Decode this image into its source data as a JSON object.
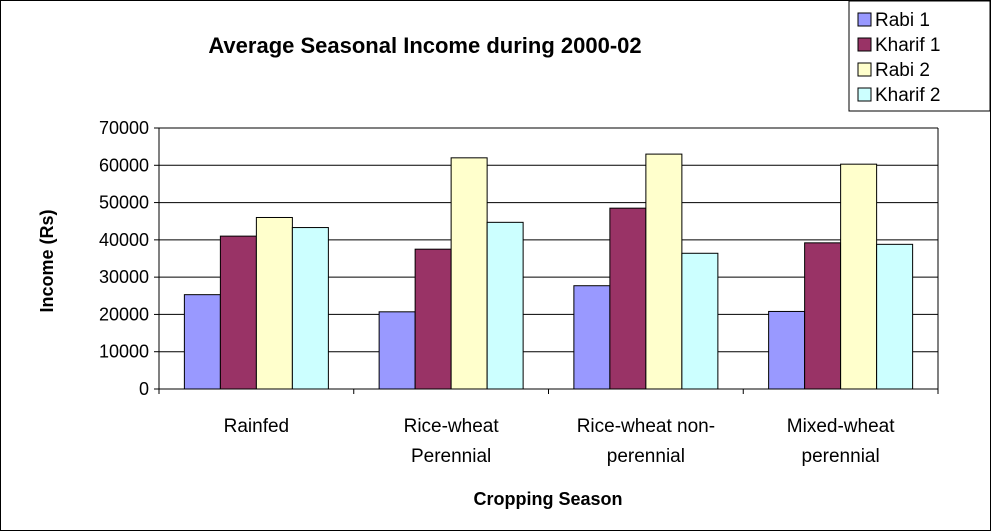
{
  "chart_data": {
    "type": "bar",
    "title": "Average Seasonal Income during 2000-02",
    "xlabel": "Cropping Season",
    "ylabel": "Income (Rs)",
    "ylim": [
      0,
      70000
    ],
    "yticks": [
      0,
      10000,
      20000,
      30000,
      40000,
      50000,
      60000,
      70000
    ],
    "grid": true,
    "legend_position": "top-right",
    "categories": [
      [
        "Rainfed"
      ],
      [
        "Rice-wheat",
        "Perennial"
      ],
      [
        "Rice-wheat non-",
        "perennial"
      ],
      [
        "Mixed-wheat",
        "perennial"
      ]
    ],
    "series": [
      {
        "name": "Rabi 1",
        "color": "#9999FF",
        "values": [
          25300,
          20700,
          27700,
          20800
        ]
      },
      {
        "name": "Kharif 1",
        "color": "#993366",
        "values": [
          41000,
          37500,
          48500,
          39200
        ]
      },
      {
        "name": "Rabi 2",
        "color": "#FFFFCC",
        "values": [
          46000,
          62000,
          63000,
          60300
        ]
      },
      {
        "name": "Kharif 2",
        "color": "#CCFFFF",
        "values": [
          43300,
          44700,
          36400,
          38800
        ]
      }
    ]
  }
}
